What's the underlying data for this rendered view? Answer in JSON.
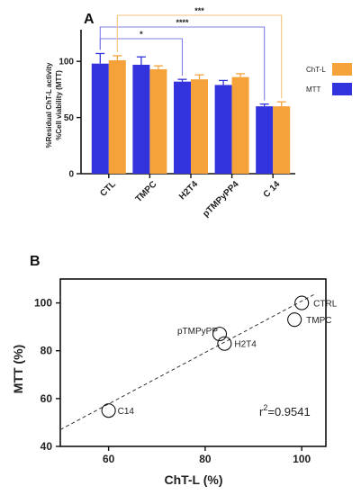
{
  "colors": {
    "mtt": "#3333dd",
    "chtl": "#f5a23a",
    "mtt_dark": "#1f1fa8",
    "chtl_dark": "#cc7d1c",
    "sig_mtt": "#7f7fe6",
    "sig_chtl": "#f5c27a",
    "axis": "#111111"
  },
  "chart_data": [
    {
      "panel": "A",
      "type": "bar",
      "ylabel_lines": [
        "%Residual ChT-L activity",
        "%Cell viability (MTT)"
      ],
      "categories": [
        "CTL",
        "TMPC",
        "H2T4",
        "pTMPyPP4",
        "C 14"
      ],
      "ylim": [
        0,
        125
      ],
      "yticks": [
        0,
        50,
        100
      ],
      "series": [
        {
          "name": "MTT",
          "values": [
            98,
            97,
            82,
            79,
            60
          ],
          "errors": [
            9,
            7,
            2,
            4,
            2
          ],
          "color": "#3333dd"
        },
        {
          "name": "ChT-L",
          "values": [
            101,
            93,
            84,
            86,
            60
          ],
          "errors": [
            4,
            3,
            4,
            3,
            4
          ],
          "color": "#f5a23a"
        }
      ],
      "legend_position": "right",
      "significance": [
        {
          "label": "*",
          "from": "CTL",
          "to": "H2T4",
          "color": "#7f7fe6"
        },
        {
          "label": "****",
          "from": "CTL",
          "to": "C 14",
          "color": "#7f7fe6"
        },
        {
          "label": "***",
          "from": "CTL",
          "to": "C 14",
          "color": "#f5c27a"
        }
      ]
    },
    {
      "panel": "B",
      "type": "scatter",
      "xlabel": "ChT-L (%)",
      "ylabel": "MTT (%)",
      "xlim": [
        50,
        105
      ],
      "ylim": [
        40,
        110
      ],
      "xticks": [
        60,
        80,
        100
      ],
      "yticks": [
        40,
        60,
        80,
        100
      ],
      "points": [
        {
          "label": "CTRL",
          "x": 100,
          "y": 100
        },
        {
          "label": "TMPC",
          "x": 98.5,
          "y": 93
        },
        {
          "label": "pTMPyPP",
          "x": 83,
          "y": 87
        },
        {
          "label": "H2T4",
          "x": 84,
          "y": 83
        },
        {
          "label": "C14",
          "x": 60,
          "y": 55
        }
      ],
      "fit_line": {
        "style": "dashed",
        "x": [
          50,
          103
        ],
        "y": [
          47,
          104
        ]
      },
      "annotation": {
        "prefix": "r",
        "sup": "2",
        "value": "=0.9541"
      }
    }
  ]
}
